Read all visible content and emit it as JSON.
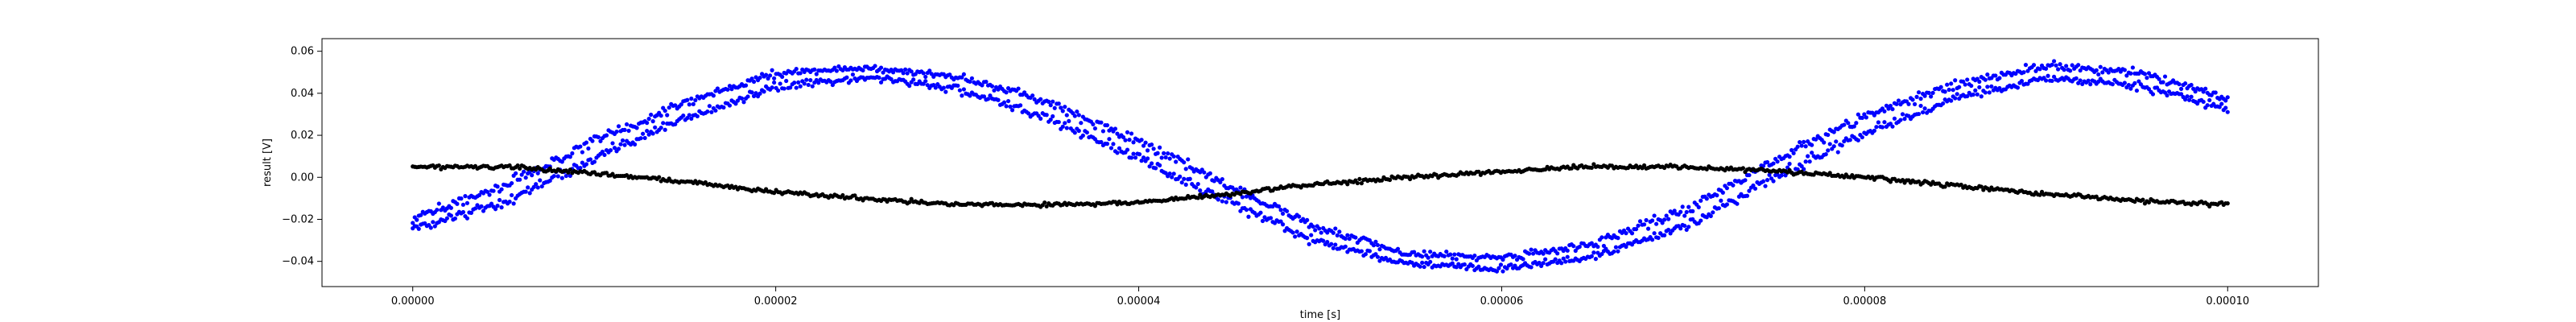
{
  "chart_data": {
    "type": "scatter",
    "title": "",
    "xlabel": "time [s]",
    "ylabel": "result [V]",
    "xlim": [
      -5e-06,
      0.000105
    ],
    "ylim": [
      -0.052,
      0.066
    ],
    "x_ticks": [
      0.0,
      2e-05,
      4e-05,
      6e-05,
      8e-05,
      0.0001
    ],
    "x_tick_labels": [
      "0.00000",
      "0.00002",
      "0.00004",
      "0.00006",
      "0.00008",
      "0.00010"
    ],
    "y_ticks": [
      -0.04,
      -0.02,
      0.0,
      0.02,
      0.04,
      0.06
    ],
    "y_tick_labels": [
      "−0.04",
      "−0.02",
      "0.00",
      "0.02",
      "0.04",
      "0.06"
    ],
    "grid": false,
    "legend": null,
    "series": [
      {
        "color": "#0000ff",
        "points_per_x": 2,
        "x": [
          0.0,
          5e-06,
          1e-05,
          1.5e-05,
          2e-05,
          2.5e-05,
          3e-05,
          3.5e-05,
          4e-05,
          4.5e-05,
          5e-05,
          5.5e-05,
          6e-05,
          6.5e-05,
          7e-05,
          7.5e-05,
          8e-05,
          8.5e-05,
          9e-05,
          9.5e-05,
          0.0001
        ],
        "y": [
          -0.022,
          -0.008,
          0.013,
          0.032,
          0.046,
          0.05,
          0.045,
          0.032,
          0.013,
          -0.008,
          -0.028,
          -0.039,
          -0.041,
          -0.035,
          -0.02,
          0.004,
          0.025,
          0.041,
          0.05,
          0.047,
          0.035
        ],
        "spread": [
          0.006,
          0.008,
          0.008,
          0.007,
          0.006,
          0.005,
          0.006,
          0.007,
          0.008,
          0.008,
          0.007,
          0.005,
          0.005,
          0.006,
          0.008,
          0.008,
          0.008,
          0.006,
          0.006,
          0.006,
          0.005
        ]
      },
      {
        "color": "#000000",
        "points_per_x": 1,
        "x": [
          0.0,
          5e-06,
          1e-05,
          1.5e-05,
          2e-05,
          2.5e-05,
          3e-05,
          3.5e-05,
          4e-05,
          4.5e-05,
          5e-05,
          5.5e-05,
          6e-05,
          6.5e-05,
          7e-05,
          7.5e-05,
          8e-05,
          8.5e-05,
          9e-05,
          9.5e-05,
          0.0001
        ],
        "y": [
          0.005,
          0.005,
          0.002,
          -0.002,
          -0.007,
          -0.01,
          -0.013,
          -0.013,
          -0.012,
          -0.008,
          -0.003,
          0.0,
          0.003,
          0.005,
          0.005,
          0.003,
          0.0,
          -0.004,
          -0.008,
          -0.011,
          -0.013
        ],
        "spread": [
          0.0008,
          0.0008,
          0.0008,
          0.0008,
          0.0008,
          0.0008,
          0.0008,
          0.0008,
          0.0008,
          0.0008,
          0.0008,
          0.0008,
          0.0008,
          0.0008,
          0.0008,
          0.0008,
          0.0008,
          0.0008,
          0.0008,
          0.0008,
          0.0008
        ]
      }
    ]
  }
}
